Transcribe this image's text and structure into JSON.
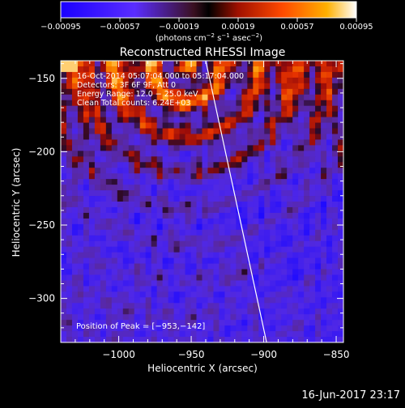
{
  "chart_data": {
    "type": "heatmap",
    "title": "Reconstructed RHESSI Image",
    "xlabel": "Heliocentric X (arcsec)",
    "ylabel": "Heliocentric Y (arcsec)",
    "xlim": [
      -1040,
      -845
    ],
    "ylim": [
      -330,
      -138
    ],
    "x_ticks": [
      -1000,
      -950,
      -900,
      -850
    ],
    "y_ticks": [
      -150,
      -200,
      -250,
      -300
    ],
    "x_tick_labels": [
      "−1000",
      "−950",
      "−900",
      "−850"
    ],
    "y_tick_labels": [
      "−150",
      "−200",
      "−250",
      "−300"
    ],
    "colorbar": {
      "range": [
        -0.00095,
        0.00095
      ],
      "tick_labels": [
        "−0.00095",
        "−0.00057",
        "−0.00019",
        "0.00019",
        "0.00057",
        "0.00095"
      ],
      "unit_prefix": "(photons cm",
      "unit_exp1": "−2",
      "unit_mid1": " s",
      "unit_exp2": "−1",
      "unit_mid2": " asec",
      "unit_exp3": "−2",
      "unit_suffix": ")"
    },
    "annotations": [
      "16-Oct-2014 05:07:04.000 to 05:17:04.000",
      "Detectors: 3F 6F 9F, Att 0",
      "Energy Range: 12.0 − 25.0 keV",
      "Clean     Total counts: 6.24E+03"
    ],
    "peak_label": "Position of Peak = [−953,−142]",
    "peak": [
      -953,
      -142
    ],
    "limb_line": [
      [
        -940,
        -138
      ],
      [
        -898,
        -330
      ]
    ],
    "colors": {
      "negative": "#3a28ff",
      "zero": "#5a2a9a",
      "positive_low": "#b01010",
      "positive_mid": "#ff5a00",
      "positive_high": "#ffe060"
    }
  },
  "footer": {
    "date": "16-Jun-2017 23:17"
  }
}
